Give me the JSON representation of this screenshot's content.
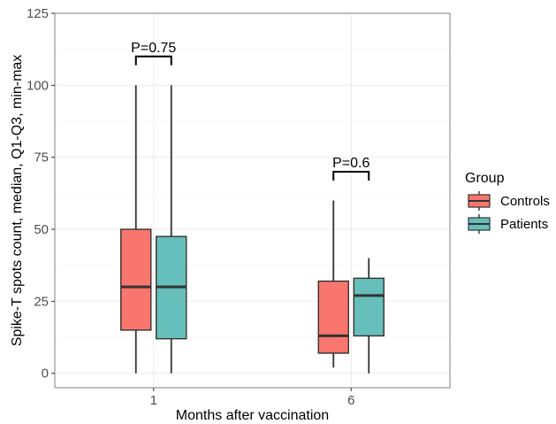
{
  "chart_data": {
    "type": "boxplot",
    "xlabel": "Months after vaccination",
    "ylabel": "Spike-T spots count, median, Q1-Q3, min-max",
    "categories": [
      "1",
      "6"
    ],
    "ylim": [
      -5,
      125
    ],
    "yticks": [
      0,
      25,
      50,
      75,
      100,
      125
    ],
    "grid": true,
    "legend": {
      "title": "Group",
      "placement": "right",
      "entries": [
        "Controls",
        "Patients"
      ]
    },
    "series": [
      {
        "name": "Controls",
        "color": "#F8766D",
        "boxes": [
          {
            "category": "1",
            "min": 0,
            "q1": 15,
            "median": 30,
            "q3": 50,
            "max": 100
          },
          {
            "category": "6",
            "min": 2,
            "q1": 7,
            "median": 13,
            "q3": 32,
            "max": 60
          }
        ]
      },
      {
        "name": "Patients",
        "color": "#66BFBA",
        "boxes": [
          {
            "category": "1",
            "min": 0,
            "q1": 12,
            "median": 30,
            "q3": 47.5,
            "max": 100
          },
          {
            "category": "6",
            "min": 0,
            "q1": 13,
            "median": 27,
            "q3": 33,
            "max": 40
          }
        ]
      }
    ],
    "annotations": [
      {
        "category": "1",
        "text": "P=0.75",
        "y": 110
      },
      {
        "category": "6",
        "text": "P=0.6",
        "y": 70
      }
    ]
  }
}
